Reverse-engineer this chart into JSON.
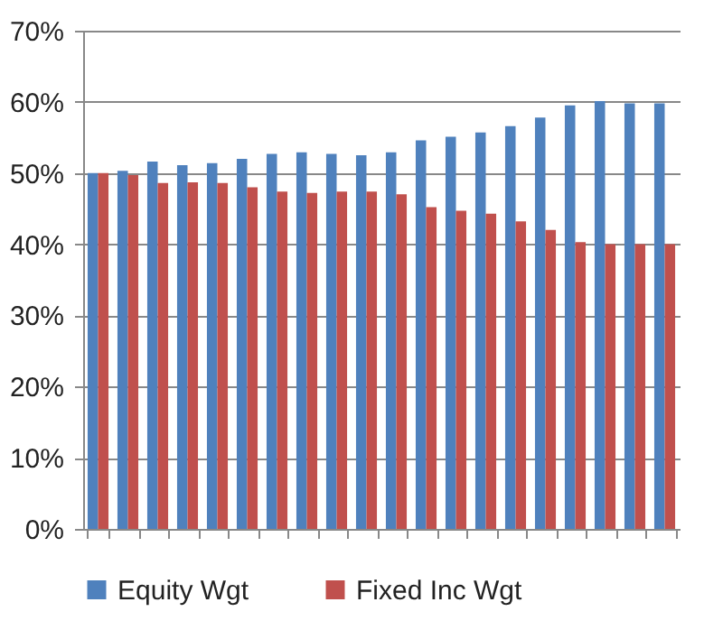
{
  "chart_data": {
    "type": "bar",
    "categories": [
      null,
      null,
      null,
      null,
      null,
      null,
      null,
      null,
      null,
      null,
      null,
      null,
      null,
      null,
      null,
      null,
      null,
      null,
      null,
      null
    ],
    "series": [
      {
        "name": "Equity Wgt",
        "color": "#4f81bd",
        "values": [
          50.0,
          50.3,
          51.6,
          51.1,
          51.4,
          52.0,
          52.7,
          52.9,
          52.7,
          52.5,
          52.9,
          54.6,
          55.1,
          55.7,
          56.6,
          57.8,
          59.5,
          60.1,
          59.8,
          59.8
        ]
      },
      {
        "name": "Fixed Inc Wgt",
        "color": "#c0504d",
        "values": [
          50.0,
          49.7,
          48.6,
          48.7,
          48.6,
          48.0,
          47.4,
          47.2,
          47.4,
          47.4,
          47.0,
          45.2,
          44.7,
          44.3,
          43.2,
          42.0,
          40.3,
          40.0,
          40.0,
          40.0
        ]
      }
    ],
    "ylim": [
      0,
      70
    ],
    "yticks": [
      {
        "value": 0,
        "label": "0%"
      },
      {
        "value": 10,
        "label": "10%"
      },
      {
        "value": 20,
        "label": "20%"
      },
      {
        "value": 30,
        "label": "30%"
      },
      {
        "value": 40,
        "label": "40%"
      },
      {
        "value": 50,
        "label": "50%"
      },
      {
        "value": 60,
        "label": "60%"
      },
      {
        "value": 70,
        "label": "70%"
      }
    ],
    "grid": "y",
    "legend": "bottom",
    "tick_labels": "y"
  }
}
